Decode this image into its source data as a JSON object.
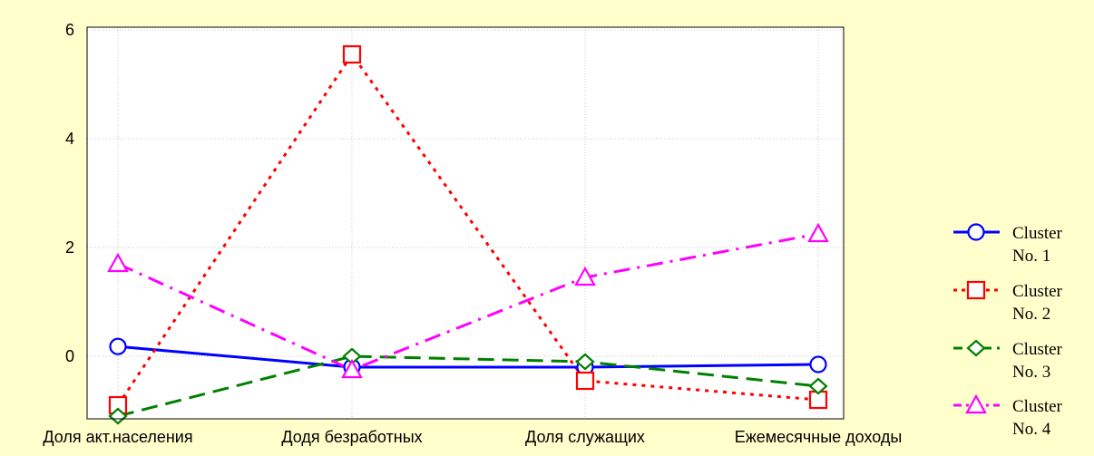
{
  "chart_data": {
    "type": "line",
    "categories": [
      "Доля акт.населения",
      "Додя безработных",
      "Доля служащих",
      "Ежемесячные доходы"
    ],
    "yticks": [
      "0",
      "2",
      "4",
      "6"
    ],
    "ylim": [
      -1.15,
      6.05
    ],
    "grid": true,
    "legend_position": "right",
    "series": [
      {
        "name_line1": "Cluster",
        "name_line2": "No. 1",
        "values": [
          0.18,
          -0.2,
          -0.2,
          -0.15
        ],
        "color": "#0000ff",
        "marker": "circle",
        "dash": "solid"
      },
      {
        "name_line1": "Cluster",
        "name_line2": "No. 2",
        "values": [
          -0.9,
          5.55,
          -0.45,
          -0.8
        ],
        "color": "#ff0000",
        "marker": "square",
        "dash": "dotted"
      },
      {
        "name_line1": "Cluster",
        "name_line2": "No. 3",
        "values": [
          -1.1,
          0.0,
          -0.1,
          -0.55
        ],
        "color": "#008000",
        "marker": "diamond",
        "dash": "dashed"
      },
      {
        "name_line1": "Cluster",
        "name_line2": "No. 4",
        "values": [
          1.7,
          -0.25,
          1.45,
          2.25
        ],
        "color": "#ff00ff",
        "marker": "triangle",
        "dash": "dashdot"
      }
    ]
  }
}
